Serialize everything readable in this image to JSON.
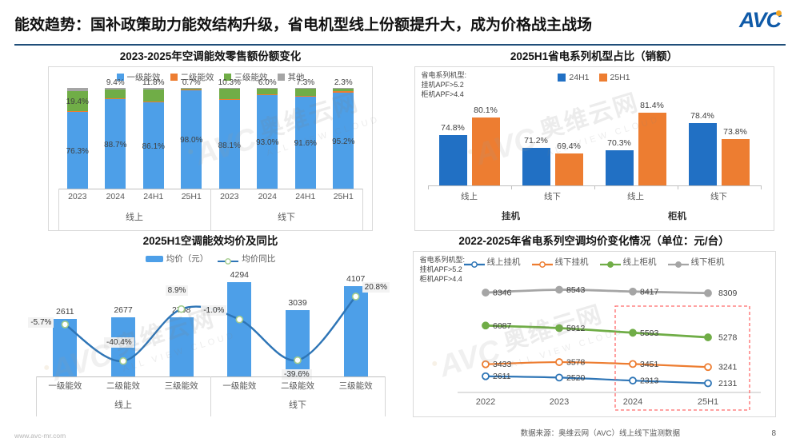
{
  "header": {
    "title": "能效趋势：国补政策助力能效结构升级，省电机型线上份额提升大，成为价格战主战场",
    "logo_text": "AVC"
  },
  "footer": {
    "url": "www.avc-mr.com",
    "source": "数据来源：奥维云网（AVC）线上线下监测数据",
    "page": "8"
  },
  "watermark": {
    "logo": "AVC",
    "cn": "奥维云网",
    "en": "ALL VIEW CLOUD"
  },
  "colors": {
    "blue_light": "#4D9FE8",
    "blue_deep": "#2170C4",
    "blue_line": "#2E75B6",
    "orange": "#ED7D31",
    "green": "#70AD47",
    "gray": "#A5A5A5",
    "axis": "#C0C0C0",
    "label_dark": "#404040",
    "label_gray": "#595959",
    "header_rule": "#1F4E79",
    "logo_blue": "#0F5AA8",
    "logo_dot": "#F5A623",
    "highlight_red": "#FF6B6B",
    "marker_ring_green": "#A3CC8B"
  },
  "chart_data": [
    {
      "id": "energy-share",
      "type": "bar",
      "variant": "stacked-percent",
      "title": "2023-2025年空调能效零售额份额变化",
      "legend": [
        "一级能效",
        "二级能效",
        "三级能效",
        "其他"
      ],
      "groups": [
        "线上",
        "线下"
      ],
      "categories": [
        "2023",
        "2024",
        "24H1",
        "25H1",
        "2023",
        "2024",
        "24H1",
        "25H1"
      ],
      "unit": "%",
      "ylim": [
        0,
        100
      ],
      "series": [
        {
          "name": "一级能效",
          "color_key": "blue_light",
          "labels_shown": true,
          "values": [
            76.3,
            88.7,
            86.1,
            98.0,
            88.1,
            93.0,
            91.6,
            95.2
          ]
        },
        {
          "name": "二级能效",
          "color_key": "orange",
          "labels_shown": false,
          "estimated": true,
          "values": [
            1.0,
            0.7,
            0.8,
            0.5,
            0.8,
            0.5,
            0.6,
            1.4
          ]
        },
        {
          "name": "三级能效",
          "color_key": "green",
          "labels_shown": true,
          "values": [
            19.4,
            9.4,
            11.8,
            0.7,
            10.3,
            6.0,
            7.3,
            2.3
          ]
        },
        {
          "name": "其他",
          "color_key": "gray",
          "labels_shown": false,
          "estimated": true,
          "values": [
            3.3,
            1.2,
            1.3,
            0.8,
            0.8,
            0.5,
            0.5,
            1.1
          ]
        }
      ]
    },
    {
      "id": "saving-model-share",
      "type": "bar",
      "variant": "grouped",
      "title": "2025H1省电系列机型占比（销额）",
      "note_lines": [
        "省电系列机型:",
        "挂机APF>5.2",
        "柜机APF>4.4"
      ],
      "legend": [
        "24H1",
        "25H1"
      ],
      "groups": [
        "挂机",
        "柜机"
      ],
      "categories": [
        "线上",
        "线下",
        "线上",
        "线下"
      ],
      "unit": "%",
      "ylim": [
        60,
        85
      ],
      "series": [
        {
          "name": "24H1",
          "color_key": "blue_deep",
          "values": [
            74.8,
            71.2,
            70.3,
            78.4
          ]
        },
        {
          "name": "25H1",
          "color_key": "orange",
          "values": [
            80.1,
            69.4,
            81.4,
            73.8
          ]
        }
      ]
    },
    {
      "id": "avg-price-yoy",
      "type": "combo",
      "title": "2025H1空调能效均价及同比",
      "legend": [
        "均价（元）",
        "均价同比"
      ],
      "groups": [
        "线上",
        "线下"
      ],
      "categories": [
        "一级能效",
        "二级能效",
        "三级能效",
        "一级能效",
        "二级能效",
        "三级能效"
      ],
      "bar_series": {
        "name": "均价（元）",
        "color_key": "blue_light",
        "unit": "元",
        "values": [
          2611,
          2677,
          2708,
          4294,
          3039,
          4107
        ]
      },
      "line_series": {
        "name": "均价同比",
        "color_key": "blue_line",
        "unit": "%",
        "values": [
          -5.7,
          -40.4,
          8.9,
          -1.0,
          -39.6,
          20.8
        ]
      }
    },
    {
      "id": "saving-price-trend",
      "type": "line",
      "title": "2022-2025年省电系列空调均价变化情况（单位：元/台）",
      "note_lines": [
        "省电系列机型:",
        "挂机APF>5.2",
        "柜机APF>4.4"
      ],
      "x": [
        "2022",
        "2023",
        "2024",
        "25H1"
      ],
      "series": [
        {
          "name": "线上挂机",
          "color_key": "blue_line",
          "marker": "open",
          "values": [
            2611,
            2520,
            2313,
            2131
          ]
        },
        {
          "name": "线下挂机",
          "color_key": "orange",
          "marker": "open",
          "values": [
            3433,
            3578,
            3451,
            3241
          ]
        },
        {
          "name": "线上柜机",
          "color_key": "green",
          "marker": "filled",
          "values": [
            6087,
            5912,
            5593,
            5278
          ]
        },
        {
          "name": "线下柜机",
          "color_key": "gray",
          "marker": "filled",
          "values": [
            8346,
            8543,
            8417,
            8309
          ]
        }
      ],
      "highlight_box": {
        "x_range": [
          "2024",
          "25H1"
        ],
        "color_key": "highlight_red"
      }
    }
  ]
}
